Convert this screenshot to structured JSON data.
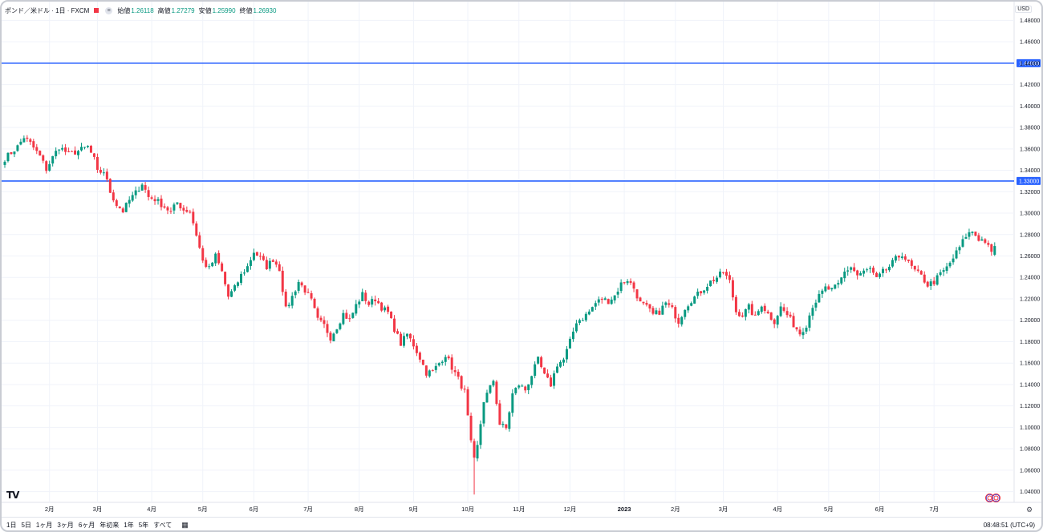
{
  "legend": {
    "symbol": "ポンド／米ドル · 1日 · FXCM",
    "collapse": "=",
    "open_label": "始値",
    "open": "1.26118",
    "high_label": "高値",
    "high": "1.27279",
    "low_label": "安値",
    "low": "1.25990",
    "close_label": "終値",
    "close": "1.26930"
  },
  "currency": "USD",
  "colors": {
    "up": "#089981",
    "down": "#f23645",
    "hline": "#2962ff",
    "grid": "#f0f3fa"
  },
  "bottom": {
    "ranges": [
      "1日",
      "5日",
      "1ヶ月",
      "3ヶ月",
      "6ヶ月",
      "年初来",
      "1年",
      "5年",
      "すべて"
    ],
    "calendar_icon": "calendar-icon",
    "clock": "08:48:51 (UTC+9)"
  },
  "logo": "TV",
  "chart_data": {
    "type": "candlestick",
    "title": "ポンド／米ドル · 1日 · FXCM",
    "price_axis": {
      "ticks": [
        "1.48000",
        "1.46000",
        "1.44000",
        "1.42000",
        "1.40000",
        "1.38000",
        "1.36000",
        "1.34000",
        "1.32000",
        "1.30000",
        "1.28000",
        "1.26000",
        "1.24000",
        "1.22000",
        "1.20000",
        "1.18000",
        "1.16000",
        "1.14000",
        "1.12000",
        "1.10000",
        "1.08000",
        "1.06000",
        "1.04000"
      ],
      "range": [
        1.03,
        1.496
      ]
    },
    "time_axis": {
      "labels": [
        "2月",
        "3月",
        "4月",
        "5月",
        "6月",
        "7月",
        "8月",
        "9月",
        "10月",
        "11月",
        "12月",
        "2023",
        "2月",
        "3月",
        "4月",
        "5月",
        "6月",
        "7月"
      ],
      "label_bar_index": [
        14,
        29,
        46,
        62,
        78,
        95,
        111,
        128,
        145,
        161,
        177,
        194,
        210,
        225,
        242,
        258,
        274,
        291
      ]
    },
    "horizontal_lines": [
      {
        "price": 1.44,
        "label": "1.44000"
      },
      {
        "price": 1.33,
        "label": "1.33000"
      }
    ],
    "grid": true,
    "waypoints": [
      [
        0,
        1.351
      ],
      [
        4,
        1.362
      ],
      [
        6,
        1.371
      ],
      [
        8,
        1.365
      ],
      [
        11,
        1.353
      ],
      [
        13,
        1.341
      ],
      [
        15,
        1.352
      ],
      [
        17,
        1.362
      ],
      [
        20,
        1.355
      ],
      [
        23,
        1.358
      ],
      [
        26,
        1.362
      ],
      [
        28,
        1.35
      ],
      [
        29,
        1.338
      ],
      [
        31,
        1.339
      ],
      [
        33,
        1.32
      ],
      [
        35,
        1.308
      ],
      [
        37,
        1.302
      ],
      [
        39,
        1.312
      ],
      [
        41,
        1.319
      ],
      [
        43,
        1.328
      ],
      [
        45,
        1.315
      ],
      [
        47,
        1.313
      ],
      [
        50,
        1.306
      ],
      [
        52,
        1.301
      ],
      [
        54,
        1.31
      ],
      [
        56,
        1.303
      ],
      [
        58,
        1.302
      ],
      [
        60,
        1.28
      ],
      [
        62,
        1.255
      ],
      [
        64,
        1.248
      ],
      [
        66,
        1.26
      ],
      [
        68,
        1.245
      ],
      [
        70,
        1.222
      ],
      [
        72,
        1.23
      ],
      [
        74,
        1.242
      ],
      [
        76,
        1.25
      ],
      [
        78,
        1.264
      ],
      [
        80,
        1.258
      ],
      [
        82,
        1.25
      ],
      [
        84,
        1.257
      ],
      [
        86,
        1.248
      ],
      [
        88,
        1.21
      ],
      [
        90,
        1.222
      ],
      [
        92,
        1.236
      ],
      [
        94,
        1.228
      ],
      [
        96,
        1.218
      ],
      [
        98,
        1.2
      ],
      [
        100,
        1.195
      ],
      [
        102,
        1.184
      ],
      [
        104,
        1.194
      ],
      [
        106,
        1.206
      ],
      [
        108,
        1.2
      ],
      [
        110,
        1.214
      ],
      [
        112,
        1.224
      ],
      [
        114,
        1.215
      ],
      [
        116,
        1.22
      ],
      [
        118,
        1.212
      ],
      [
        120,
        1.207
      ],
      [
        122,
        1.192
      ],
      [
        124,
        1.178
      ],
      [
        126,
        1.187
      ],
      [
        128,
        1.177
      ],
      [
        130,
        1.165
      ],
      [
        132,
        1.151
      ],
      [
        134,
        1.152
      ],
      [
        136,
        1.16
      ],
      [
        138,
        1.168
      ],
      [
        140,
        1.156
      ],
      [
        142,
        1.145
      ],
      [
        144,
        1.133
      ],
      [
        146,
        1.085
      ],
      [
        147,
        1.069
      ],
      [
        148,
        1.082
      ],
      [
        150,
        1.125
      ],
      [
        152,
        1.137
      ],
      [
        153,
        1.144
      ],
      [
        155,
        1.103
      ],
      [
        157,
        1.099
      ],
      [
        159,
        1.131
      ],
      [
        161,
        1.14
      ],
      [
        163,
        1.135
      ],
      [
        165,
        1.149
      ],
      [
        167,
        1.163
      ],
      [
        169,
        1.148
      ],
      [
        171,
        1.14
      ],
      [
        173,
        1.159
      ],
      [
        175,
        1.163
      ],
      [
        177,
        1.18
      ],
      [
        179,
        1.199
      ],
      [
        181,
        1.202
      ],
      [
        183,
        1.208
      ],
      [
        185,
        1.216
      ],
      [
        187,
        1.22
      ],
      [
        189,
        1.218
      ],
      [
        191,
        1.223
      ],
      [
        193,
        1.234
      ],
      [
        195,
        1.238
      ],
      [
        197,
        1.23
      ],
      [
        199,
        1.216
      ],
      [
        201,
        1.212
      ],
      [
        203,
        1.205
      ],
      [
        205,
        1.208
      ],
      [
        207,
        1.216
      ],
      [
        209,
        1.21
      ],
      [
        211,
        1.199
      ],
      [
        213,
        1.212
      ],
      [
        215,
        1.219
      ],
      [
        217,
        1.224
      ],
      [
        219,
        1.23
      ],
      [
        221,
        1.236
      ],
      [
        223,
        1.24
      ],
      [
        225,
        1.245
      ],
      [
        227,
        1.236
      ],
      [
        229,
        1.208
      ],
      [
        231,
        1.205
      ],
      [
        233,
        1.212
      ],
      [
        235,
        1.202
      ],
      [
        237,
        1.215
      ],
      [
        239,
        1.206
      ],
      [
        241,
        1.199
      ],
      [
        243,
        1.212
      ],
      [
        245,
        1.205
      ],
      [
        247,
        1.196
      ],
      [
        249,
        1.188
      ],
      [
        251,
        1.196
      ],
      [
        253,
        1.214
      ],
      [
        255,
        1.222
      ],
      [
        257,
        1.23
      ],
      [
        259,
        1.228
      ],
      [
        261,
        1.233
      ],
      [
        263,
        1.245
      ],
      [
        265,
        1.25
      ],
      [
        267,
        1.242
      ],
      [
        269,
        1.245
      ],
      [
        271,
        1.248
      ],
      [
        273,
        1.238
      ],
      [
        275,
        1.245
      ],
      [
        277,
        1.25
      ],
      [
        279,
        1.257
      ],
      [
        281,
        1.262
      ],
      [
        283,
        1.253
      ],
      [
        285,
        1.246
      ],
      [
        287,
        1.241
      ],
      [
        289,
        1.233
      ],
      [
        291,
        1.236
      ],
      [
        293,
        1.243
      ],
      [
        295,
        1.249
      ],
      [
        297,
        1.258
      ],
      [
        299,
        1.268
      ],
      [
        301,
        1.279
      ],
      [
        303,
        1.283
      ],
      [
        305,
        1.276
      ],
      [
        307,
        1.274
      ],
      [
        309,
        1.262
      ],
      [
        310,
        1.268
      ]
    ],
    "last_bar_index": 310,
    "random_seed": 7
  }
}
